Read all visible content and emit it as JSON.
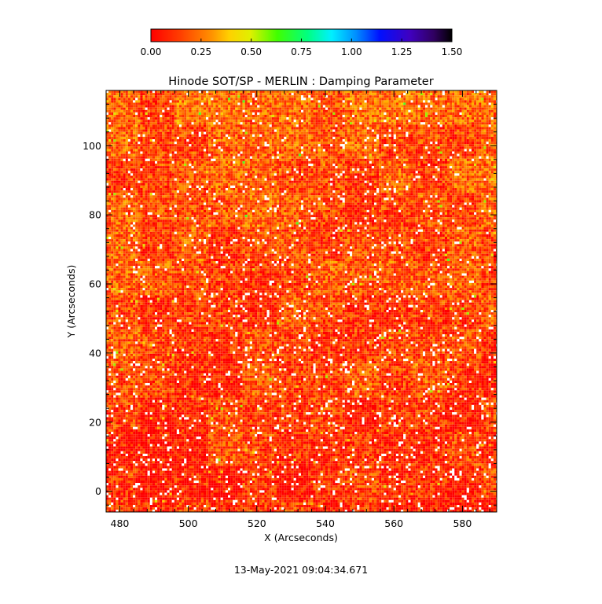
{
  "chart_data": {
    "type": "heatmap",
    "title": "Hinode SOT/SP - MERLIN : Damping Parameter",
    "xlabel": "X (Arcseconds)",
    "ylabel": "Y (Arcseconds)",
    "xlim": [
      476,
      590
    ],
    "ylim": [
      -6,
      116
    ],
    "xticks": [
      480,
      500,
      520,
      540,
      560,
      580
    ],
    "yticks": [
      0,
      20,
      40,
      60,
      80,
      100
    ],
    "colorbar": {
      "min": 0.0,
      "max": 1.5,
      "ticks": [
        "0.00",
        "0.25",
        "0.50",
        "0.75",
        "1.00",
        "1.25",
        "1.50"
      ],
      "colormap": "rainbow-reversed (red, orange, yellow, green, cyan, blue, purple, black)"
    },
    "value_distribution": "mostly 0.0-0.25 (red/orange), scattered 0.25-0.6 (yellow/green), isolated missing pixels (white)",
    "timestamp": "13-May-2021 09:04:34.671"
  }
}
